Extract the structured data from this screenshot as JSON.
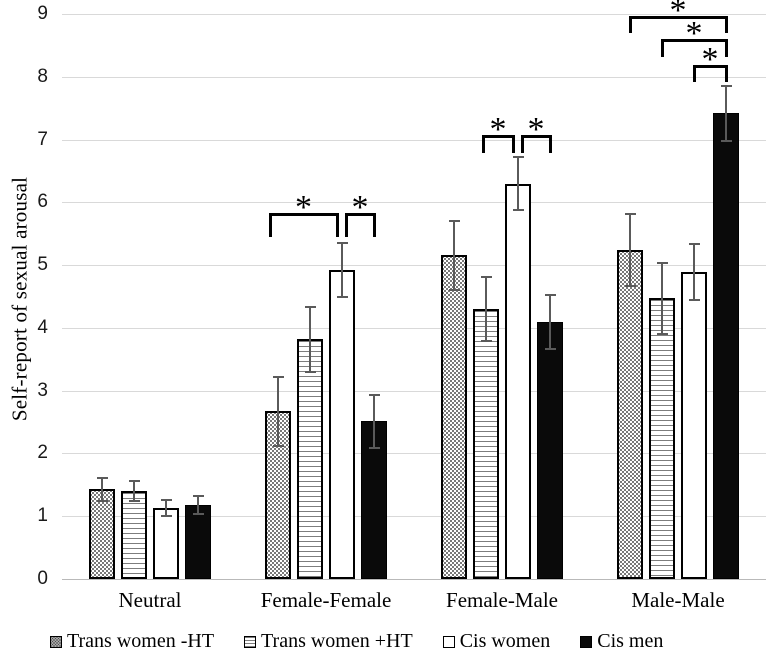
{
  "chart_data": {
    "type": "bar",
    "title": "",
    "xlabel": "",
    "ylabel": "Self-report of sexual arousal",
    "ylim": [
      0,
      9
    ],
    "ytick_interval": 1,
    "grid": "horizontal gridlines on",
    "legend_position": "bottom",
    "categories": [
      "Neutral",
      "Female-Female",
      "Female-Male",
      "Male-Male"
    ],
    "series": [
      {
        "name": "Trans women -HT",
        "pattern": "dots",
        "values": [
          1.43,
          2.67,
          5.16,
          5.24
        ],
        "errors": [
          0.18,
          0.55,
          0.55,
          0.57
        ]
      },
      {
        "name": "Trans women +HT",
        "pattern": "hlines",
        "values": [
          1.4,
          3.82,
          4.3,
          4.47
        ],
        "errors": [
          0.16,
          0.52,
          0.51,
          0.57
        ]
      },
      {
        "name": "Cis women",
        "pattern": "white",
        "values": [
          1.13,
          4.93,
          6.3,
          4.89
        ],
        "errors": [
          0.13,
          0.43,
          0.43,
          0.45
        ]
      },
      {
        "name": "Cis men",
        "pattern": "solid",
        "values": [
          1.18,
          2.51,
          4.1,
          7.42
        ],
        "errors": [
          0.14,
          0.42,
          0.43,
          0.44
        ]
      }
    ],
    "significance_brackets": [
      {
        "category": 1,
        "from_series": 0,
        "to_series": 2,
        "label": "*",
        "top_value": 5.83,
        "leg_drop": 0.38,
        "from_nudge": -8,
        "to_nudge": -5
      },
      {
        "category": 1,
        "from_series": 2,
        "to_series": 3,
        "label": "*",
        "top_value": 5.83,
        "leg_drop": 0.38,
        "from_nudge": 4,
        "to_nudge": 0
      },
      {
        "category": 2,
        "from_series": 1,
        "to_series": 2,
        "label": "*",
        "top_value": 7.07,
        "leg_drop": 0.29,
        "from_nudge": -3,
        "to_nudge": -5
      },
      {
        "category": 2,
        "from_series": 2,
        "to_series": 3,
        "label": "*",
        "top_value": 7.07,
        "leg_drop": 0.29,
        "from_nudge": 4,
        "to_nudge": 0
      },
      {
        "category": 3,
        "from_series": 0,
        "to_series": 3,
        "label": "*",
        "top_value": 8.97,
        "leg_drop": 0.27,
        "from_nudge": 0,
        "to_nudge": 0
      },
      {
        "category": 3,
        "from_series": 1,
        "to_series": 3,
        "label": "*",
        "top_value": 8.6,
        "leg_drop": 0.29,
        "from_nudge": 0,
        "to_nudge": 0
      },
      {
        "category": 3,
        "from_series": 2,
        "to_series": 3,
        "label": "*",
        "top_value": 8.18,
        "leg_drop": 0.27,
        "from_nudge": 0,
        "to_nudge": 0
      }
    ],
    "colors": {
      "bar_border": "#000000",
      "solid_fill": "#0a0a0a",
      "error_bar": "#5a5a5a",
      "gridline": "#d9d9d9",
      "axis_line": "#b9b9b9",
      "background": "#ffffff"
    }
  }
}
